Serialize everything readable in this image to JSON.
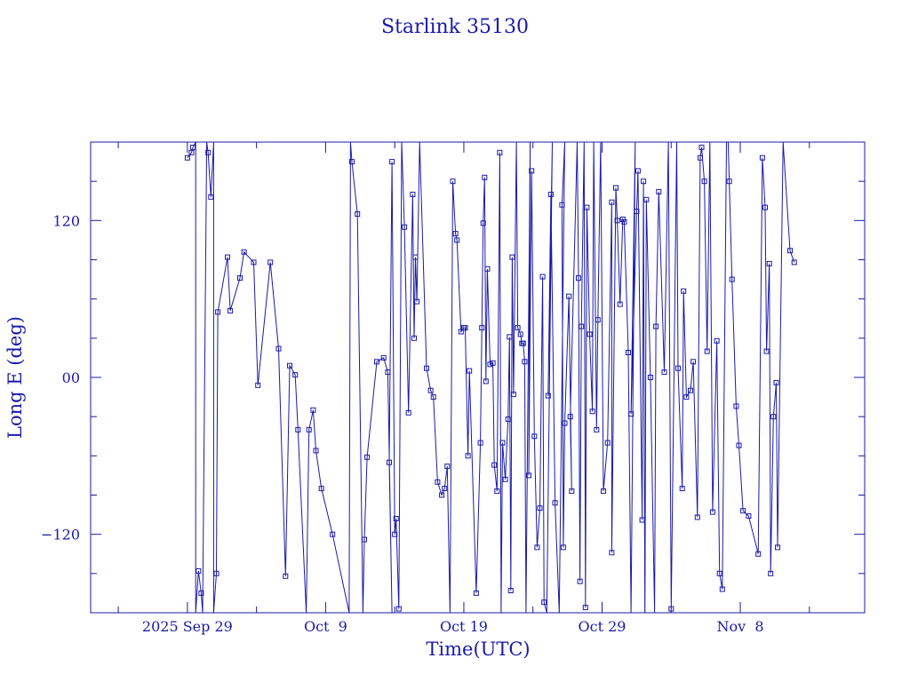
{
  "chart_data": {
    "type": "line",
    "title": "Starlink 35130",
    "xlabel": "Time(UTC)",
    "ylabel": "Long E (deg)",
    "x_unit": "day of 2025",
    "xlim": [
      264.5,
      320.5
    ],
    "ylim": [
      -180,
      180
    ],
    "x_ticks": [
      {
        "x": 271.5,
        "label": "2025 Sep 29"
      },
      {
        "x": 281.5,
        "label": "Oct  9"
      },
      {
        "x": 291.5,
        "label": "Oct 19"
      },
      {
        "x": 301.5,
        "label": "Oct 29"
      },
      {
        "x": 311.5,
        "label": "Nov  8"
      }
    ],
    "y_ticks": [
      {
        "y": 120,
        "label": "120"
      },
      {
        "y": 0,
        "label": "00"
      },
      {
        "y": -120,
        "label": "−120"
      }
    ],
    "grid": false,
    "series": [
      {
        "color": "#1a1aa8",
        "points": [
          [
            271.5,
            168
          ],
          [
            271.8,
            172
          ],
          [
            271.9,
            176
          ],
          [
            272.1,
            180
          ],
          [
            272.1,
            -180
          ],
          [
            272.3,
            -148
          ],
          [
            272.5,
            -165
          ],
          [
            272.6,
            -180
          ],
          [
            272.9,
            180
          ],
          [
            273.0,
            172
          ],
          [
            273.2,
            138
          ],
          [
            273.4,
            180
          ],
          [
            273.4,
            -180
          ],
          [
            273.6,
            -150
          ],
          [
            273.7,
            50
          ],
          [
            274.4,
            92
          ],
          [
            274.6,
            51
          ],
          [
            275.3,
            76
          ],
          [
            275.6,
            96
          ],
          [
            276.3,
            88
          ],
          [
            276.6,
            -6
          ],
          [
            277.5,
            88
          ],
          [
            278.1,
            22
          ],
          [
            278.6,
            -152
          ],
          [
            278.9,
            9
          ],
          [
            279.3,
            2
          ],
          [
            279.5,
            -40
          ],
          [
            280.1,
            -180
          ],
          [
            280.3,
            -40
          ],
          [
            280.6,
            -25
          ],
          [
            280.8,
            -56
          ],
          [
            281.2,
            -85
          ],
          [
            282.0,
            -120
          ],
          [
            283.2,
            -180
          ],
          [
            283.3,
            180
          ],
          [
            283.4,
            165
          ],
          [
            283.8,
            125
          ],
          [
            284.2,
            -180
          ],
          [
            284.3,
            -124
          ],
          [
            284.5,
            -61
          ],
          [
            285.2,
            12
          ],
          [
            285.7,
            15
          ],
          [
            286.0,
            4
          ],
          [
            286.3,
            -180
          ],
          [
            286.1,
            -65
          ],
          [
            286.3,
            165
          ],
          [
            286.5,
            -120
          ],
          [
            286.6,
            -108
          ],
          [
            286.8,
            -177
          ],
          [
            287.0,
            180
          ],
          [
            287.2,
            115
          ],
          [
            287.5,
            -27
          ],
          [
            287.8,
            140
          ],
          [
            287.9,
            30
          ],
          [
            288.0,
            92
          ],
          [
            288.1,
            58
          ],
          [
            288.3,
            180
          ],
          [
            288.8,
            7
          ],
          [
            289.1,
            -10
          ],
          [
            289.3,
            -15
          ],
          [
            289.6,
            -80
          ],
          [
            289.9,
            -90
          ],
          [
            290.1,
            -85
          ],
          [
            290.3,
            -68
          ],
          [
            290.5,
            -180
          ],
          [
            290.7,
            150
          ],
          [
            290.9,
            110
          ],
          [
            291.0,
            105
          ],
          [
            291.3,
            35
          ],
          [
            291.5,
            38
          ],
          [
            291.6,
            38
          ],
          [
            291.8,
            -60
          ],
          [
            291.9,
            5
          ],
          [
            292.4,
            -165
          ],
          [
            292.7,
            -50
          ],
          [
            292.8,
            38
          ],
          [
            292.9,
            118
          ],
          [
            293.0,
            153
          ],
          [
            293.1,
            -3
          ],
          [
            293.2,
            83
          ],
          [
            293.4,
            10
          ],
          [
            293.6,
            11
          ],
          [
            293.7,
            -67
          ],
          [
            293.9,
            -87
          ],
          [
            294.1,
            172
          ],
          [
            294.2,
            -180
          ],
          [
            294.3,
            -50
          ],
          [
            294.5,
            -78
          ],
          [
            294.7,
            -32
          ],
          [
            294.8,
            31
          ],
          [
            294.9,
            -163
          ],
          [
            295.0,
            92
          ],
          [
            295.1,
            -13
          ],
          [
            295.3,
            180
          ],
          [
            295.4,
            38
          ],
          [
            295.6,
            33
          ],
          [
            295.7,
            26
          ],
          [
            295.8,
            26
          ],
          [
            295.9,
            12
          ],
          [
            296.0,
            -180
          ],
          [
            296.3,
            180
          ],
          [
            296.2,
            -75
          ],
          [
            296.4,
            158
          ],
          [
            296.6,
            -45
          ],
          [
            296.8,
            -130
          ],
          [
            297.0,
            -100
          ],
          [
            297.2,
            77
          ],
          [
            297.3,
            -172
          ],
          [
            297.5,
            -180
          ],
          [
            297.9,
            180
          ],
          [
            297.6,
            -14
          ],
          [
            297.8,
            140
          ],
          [
            298.1,
            -96
          ],
          [
            298.4,
            -180
          ],
          [
            298.8,
            180
          ],
          [
            298.6,
            132
          ],
          [
            298.7,
            -130
          ],
          [
            298.8,
            -35
          ],
          [
            299.1,
            62
          ],
          [
            299.3,
            -87
          ],
          [
            299.2,
            -30
          ],
          [
            299.7,
            180
          ],
          [
            299.8,
            76
          ],
          [
            299.9,
            -156
          ],
          [
            300.0,
            39
          ],
          [
            300.2,
            180
          ],
          [
            300.3,
            -176
          ],
          [
            300.4,
            130
          ],
          [
            300.6,
            33
          ],
          [
            300.8,
            -26
          ],
          [
            300.9,
            180
          ],
          [
            301.1,
            -40
          ],
          [
            301.2,
            44
          ],
          [
            301.4,
            180
          ],
          [
            301.6,
            -87
          ],
          [
            301.9,
            -50
          ],
          [
            302.2,
            134
          ],
          [
            302.2,
            -134
          ],
          [
            302.5,
            145
          ],
          [
            302.6,
            120
          ],
          [
            302.8,
            56
          ],
          [
            303.0,
            121
          ],
          [
            303.1,
            119
          ],
          [
            303.4,
            19
          ],
          [
            303.6,
            -180
          ],
          [
            303.9,
            180
          ],
          [
            303.6,
            -28
          ],
          [
            304.0,
            127
          ],
          [
            304.1,
            158
          ],
          [
            304.4,
            -109
          ],
          [
            304.5,
            150
          ],
          [
            304.6,
            -190
          ],
          [
            304.7,
            136
          ],
          [
            305.0,
            0
          ],
          [
            305.3,
            -180
          ],
          [
            305.4,
            39
          ],
          [
            305.6,
            142
          ],
          [
            306.0,
            4
          ],
          [
            306.3,
            180
          ],
          [
            306.5,
            -177
          ],
          [
            306.9,
            180
          ],
          [
            307.0,
            7
          ],
          [
            307.3,
            -85
          ],
          [
            307.4,
            66
          ],
          [
            307.6,
            -15
          ],
          [
            307.9,
            -10
          ],
          [
            308.1,
            12
          ],
          [
            308.4,
            -107
          ],
          [
            308.6,
            168
          ],
          [
            308.7,
            176
          ],
          [
            308.9,
            150
          ],
          [
            309.1,
            20
          ],
          [
            309.3,
            180
          ],
          [
            309.5,
            -103
          ],
          [
            309.8,
            28
          ],
          [
            310.0,
            -150
          ],
          [
            310.2,
            -162
          ],
          [
            310.5,
            180
          ],
          [
            310.6,
            190
          ],
          [
            310.7,
            150
          ],
          [
            310.9,
            75
          ],
          [
            311.2,
            -22
          ],
          [
            311.4,
            -52
          ],
          [
            311.7,
            -102
          ],
          [
            312.1,
            -106
          ],
          [
            312.8,
            -135
          ],
          [
            313.1,
            168
          ],
          [
            313.3,
            130
          ],
          [
            313.4,
            20
          ],
          [
            313.6,
            87
          ],
          [
            313.7,
            -150
          ],
          [
            313.9,
            -30
          ],
          [
            314.1,
            -4
          ],
          [
            314.2,
            -130
          ],
          [
            314.6,
            180
          ],
          [
            315.1,
            97
          ],
          [
            315.4,
            88
          ]
        ]
      }
    ]
  }
}
